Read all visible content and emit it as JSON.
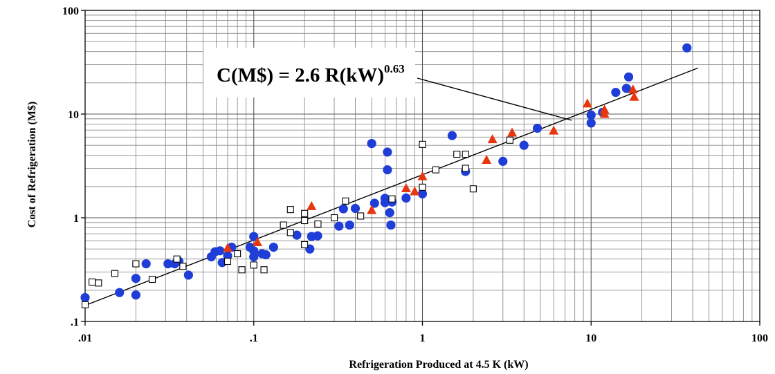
{
  "chart_data": {
    "type": "scatter",
    "x_scale": "log",
    "y_scale": "log",
    "xlim": [
      0.01,
      100
    ],
    "ylim": [
      0.1,
      100
    ],
    "grid": true,
    "xlabel": "Refrigeration Produced at 4.5 K (kW)",
    "ylabel": "Cost of Refrigeration (M$)",
    "x_ticks": [
      ".01",
      ".1",
      "1",
      "10",
      "100"
    ],
    "y_ticks": [
      ".1",
      "1",
      "10",
      "100"
    ],
    "annotation": {
      "text": "C(M$) = 2.6 R(kW)",
      "exponent": "0.63"
    },
    "fit": {
      "coefficient": 2.6,
      "exponent": 0.63,
      "x_range": [
        0.01,
        43
      ]
    },
    "colors": {
      "circle": "#1f3ed8",
      "triangle": "#e8360f",
      "square_stroke": "#000000",
      "grid": "#8c8c8c"
    },
    "series": [
      {
        "marker": "circle",
        "points": [
          [
            0.01,
            0.17
          ],
          [
            0.016,
            0.19
          ],
          [
            0.02,
            0.26
          ],
          [
            0.02,
            0.18
          ],
          [
            0.023,
            0.36
          ],
          [
            0.031,
            0.36
          ],
          [
            0.034,
            0.36
          ],
          [
            0.036,
            0.38
          ],
          [
            0.041,
            0.28
          ],
          [
            0.056,
            0.42
          ],
          [
            0.059,
            0.47
          ],
          [
            0.063,
            0.48
          ],
          [
            0.065,
            0.37
          ],
          [
            0.07,
            0.43
          ],
          [
            0.074,
            0.52
          ],
          [
            0.095,
            0.52
          ],
          [
            0.1,
            0.48
          ],
          [
            0.1,
            0.42
          ],
          [
            0.1,
            0.66
          ],
          [
            0.112,
            0.45
          ],
          [
            0.118,
            0.44
          ],
          [
            0.131,
            0.52
          ],
          [
            0.18,
            0.68
          ],
          [
            0.215,
            0.5
          ],
          [
            0.22,
            0.66
          ],
          [
            0.239,
            0.67
          ],
          [
            0.32,
            0.83
          ],
          [
            0.34,
            1.22
          ],
          [
            0.37,
            0.85
          ],
          [
            0.4,
            1.23
          ],
          [
            0.5,
            5.2
          ],
          [
            0.52,
            1.38
          ],
          [
            0.6,
            1.54
          ],
          [
            0.6,
            1.4
          ],
          [
            0.62,
            4.3
          ],
          [
            0.62,
            2.9
          ],
          [
            0.64,
            1.12
          ],
          [
            0.66,
            1.42
          ],
          [
            0.65,
            0.85
          ],
          [
            0.8,
            1.55
          ],
          [
            1.0,
            1.7
          ],
          [
            1.5,
            6.2
          ],
          [
            1.8,
            2.8
          ],
          [
            3.0,
            3.5
          ],
          [
            4.0,
            5.0
          ],
          [
            4.8,
            7.3
          ],
          [
            10.0,
            9.8
          ],
          [
            10.0,
            8.2
          ],
          [
            11.7,
            10.4
          ],
          [
            14.0,
            16.2
          ],
          [
            16.2,
            17.7
          ],
          [
            16.7,
            22.8
          ],
          [
            37.0,
            43.5
          ]
        ]
      },
      {
        "marker": "triangle",
        "points": [
          [
            0.07,
            0.51
          ],
          [
            0.105,
            0.58
          ],
          [
            0.22,
            1.29
          ],
          [
            0.5,
            1.18
          ],
          [
            0.8,
            1.92
          ],
          [
            0.9,
            1.79
          ],
          [
            1.0,
            2.5
          ],
          [
            2.4,
            3.6
          ],
          [
            2.6,
            5.7
          ],
          [
            3.4,
            6.6
          ],
          [
            6.0,
            6.9
          ],
          [
            9.5,
            12.6
          ],
          [
            12.0,
            11.0
          ],
          [
            12.0,
            10.0
          ],
          [
            17.7,
            17.2
          ],
          [
            18.0,
            14.6
          ]
        ]
      },
      {
        "marker": "square",
        "points": [
          [
            0.01,
            0.145
          ],
          [
            0.011,
            0.24
          ],
          [
            0.012,
            0.235
          ],
          [
            0.015,
            0.29
          ],
          [
            0.02,
            0.36
          ],
          [
            0.025,
            0.255
          ],
          [
            0.035,
            0.4
          ],
          [
            0.038,
            0.34
          ],
          [
            0.07,
            0.38
          ],
          [
            0.08,
            0.45
          ],
          [
            0.085,
            0.315
          ],
          [
            0.1,
            0.35
          ],
          [
            0.115,
            0.315
          ],
          [
            0.15,
            0.85
          ],
          [
            0.165,
            1.2
          ],
          [
            0.165,
            0.72
          ],
          [
            0.2,
            1.1
          ],
          [
            0.2,
            0.94
          ],
          [
            0.2,
            0.55
          ],
          [
            0.24,
            0.87
          ],
          [
            0.3,
            1.0
          ],
          [
            0.35,
            1.45
          ],
          [
            0.43,
            1.04
          ],
          [
            0.66,
            1.52
          ],
          [
            1.0,
            5.1
          ],
          [
            1.0,
            1.97
          ],
          [
            1.2,
            2.9
          ],
          [
            1.6,
            4.1
          ],
          [
            1.8,
            4.1
          ],
          [
            1.8,
            3.0
          ],
          [
            2.0,
            1.9
          ],
          [
            3.3,
            5.6
          ]
        ]
      }
    ]
  }
}
